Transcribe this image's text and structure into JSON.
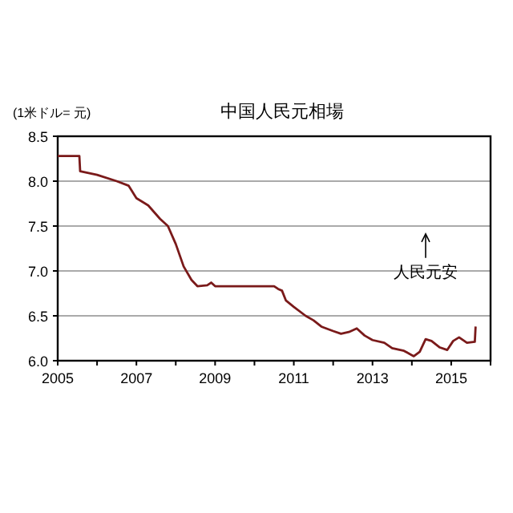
{
  "chart_data": {
    "type": "line",
    "title": "中国人民元相場",
    "ylabel": "(1米ドル= 元)",
    "annotations": [
      "人民元安"
    ],
    "x": [
      2005.0,
      2005.55,
      2005.57,
      2006.0,
      2006.5,
      2006.8,
      2007.0,
      2007.3,
      2007.6,
      2007.8,
      2008.0,
      2008.2,
      2008.4,
      2008.55,
      2008.8,
      2008.9,
      2009.0,
      2009.5,
      2010.0,
      2010.5,
      2010.6,
      2010.7,
      2010.8,
      2011.0,
      2011.3,
      2011.5,
      2011.7,
      2012.0,
      2012.2,
      2012.4,
      2012.6,
      2012.8,
      2013.0,
      2013.3,
      2013.5,
      2013.8,
      2014.05,
      2014.2,
      2014.35,
      2014.5,
      2014.7,
      2014.9,
      2015.05,
      2015.2,
      2015.4,
      2015.6,
      2015.62
    ],
    "series": [
      {
        "color": "#7a1a1a",
        "values": [
          8.28,
          8.28,
          8.11,
          8.07,
          8.0,
          7.95,
          7.81,
          7.73,
          7.58,
          7.5,
          7.3,
          7.05,
          6.9,
          6.83,
          6.84,
          6.87,
          6.83,
          6.83,
          6.83,
          6.83,
          6.8,
          6.78,
          6.67,
          6.6,
          6.5,
          6.45,
          6.38,
          6.33,
          6.3,
          6.32,
          6.36,
          6.28,
          6.23,
          6.2,
          6.14,
          6.11,
          6.05,
          6.1,
          6.24,
          6.22,
          6.15,
          6.12,
          6.22,
          6.26,
          6.2,
          6.21,
          6.38
        ]
      }
    ],
    "xlim": [
      2005,
      2016
    ],
    "xticks": [
      2005,
      {
        "value": 2006,
        "label": null
      },
      2007,
      {
        "value": 2008,
        "label": null
      },
      2009,
      {
        "value": 2010,
        "label": null
      },
      2011,
      {
        "value": 2012,
        "label": null
      },
      2013,
      {
        "value": 2014,
        "label": null
      },
      2015,
      {
        "value": 2016,
        "label": null
      }
    ],
    "ylim": [
      6.0,
      8.5
    ],
    "yticks": [
      {
        "value": 6.0,
        "label": "6.0"
      },
      6.5,
      {
        "value": 7.0,
        "label": "7.0"
      },
      7.5,
      {
        "value": 8.0,
        "label": "8.0"
      },
      8.5
    ],
    "grid": "y",
    "marker": "none",
    "line_style": "solid"
  }
}
